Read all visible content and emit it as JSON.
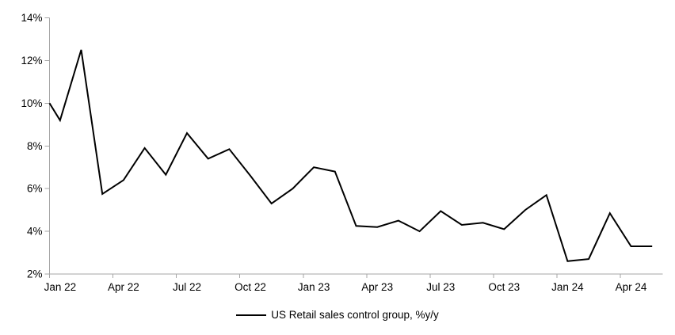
{
  "chart_data": {
    "type": "line",
    "title": "",
    "x_categories": [
      "Jan 22",
      "Feb 22",
      "Mar 22",
      "Apr 22",
      "May 22",
      "Jun 22",
      "Jul 22",
      "Aug 22",
      "Sep 22",
      "Oct 22",
      "Nov 22",
      "Dec 22",
      "Jan 23",
      "Feb 23",
      "Mar 23",
      "Apr 23",
      "May 23",
      "Jun 23",
      "Jul 23",
      "Aug 23",
      "Sep 23",
      "Oct 23",
      "Nov 23",
      "Dec 23",
      "Jan 24",
      "Feb 24",
      "Mar 24",
      "Apr 24",
      "May 24"
    ],
    "series": [
      {
        "name": "US Retail sales control group, %y/y",
        "color": "#000000",
        "values": [
          9.2,
          12.5,
          5.75,
          6.4,
          7.9,
          6.65,
          8.6,
          7.4,
          7.85,
          6.6,
          5.3,
          6.0,
          7.0,
          6.8,
          4.25,
          4.2,
          4.5,
          4.0,
          4.95,
          4.3,
          4.4,
          4.1,
          5.0,
          5.7,
          2.6,
          2.7,
          4.85,
          3.3,
          3.3
        ],
        "value_at_left_axis_clip": 10.0
      }
    ],
    "x_tick_labels": [
      "Jan 22",
      "Apr 22",
      "Jul 22",
      "Oct 22",
      "Jan 23",
      "Apr 23",
      "Jul 23",
      "Oct 23",
      "Jan 24",
      "Apr 24"
    ],
    "x_tick_every_n_months": 3,
    "y_tick_labels": [
      "2%",
      "4%",
      "6%",
      "8%",
      "10%",
      "12%",
      "14%"
    ],
    "y_tick_values": [
      2,
      4,
      6,
      8,
      10,
      12,
      14
    ],
    "ylim": [
      2,
      14
    ],
    "grid": false,
    "axis_color": "#a6a6a6",
    "text_color": "#000000",
    "legend": {
      "label": "US Retail sales control group, %y/y",
      "position": "bottom-center"
    }
  }
}
